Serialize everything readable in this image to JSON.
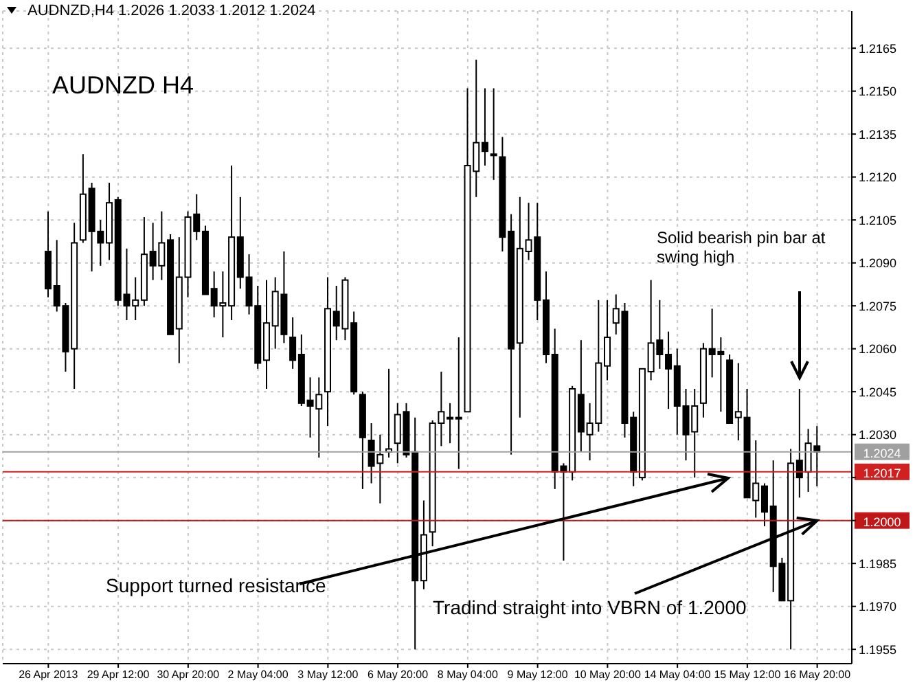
{
  "chart_data": {
    "type": "candlestick",
    "title": "AUDNZD H4",
    "annotations": [
      "AUDNZD,H4  1.2026 1.2033 1.2012 1.2024",
      "Support turned resistance",
      {
        "text": "Tradind straight into VBRN of 1.2000",
        "x": "16 May 20:00",
        "y": 1.2
      },
      "Solid bearish pin bar at swing high"
    ],
    "categories": [
      "26 Apr 2013",
      null,
      null,
      null,
      null,
      null,
      null,
      null,
      "29 Apr 12:00",
      null,
      null,
      null,
      null,
      null,
      null,
      null,
      "30 Apr 20:00",
      null,
      null,
      null,
      null,
      null,
      null,
      null,
      "2 May 04:00",
      null,
      null,
      null,
      null,
      null,
      null,
      null,
      "3 May 12:00",
      null,
      null,
      null,
      null,
      null,
      null,
      null,
      "6 May 20:00",
      null,
      null,
      null,
      null,
      null,
      null,
      null,
      "8 May 04:00",
      null,
      null,
      null,
      null,
      null,
      null,
      null,
      "9 May 12:00",
      null,
      null,
      null,
      null,
      null,
      null,
      null,
      "10 May 20:00",
      null,
      null,
      null,
      null,
      null,
      null,
      null,
      "14 May 04:00",
      null,
      null,
      null,
      null,
      null,
      null,
      null,
      "15 May 12:00",
      null,
      null,
      null,
      null,
      null,
      null,
      null,
      "16 May 20:00"
    ],
    "color": "#000000",
    "ohlc": [
      [
        1.2094,
        1.2108,
        1.2078,
        1.2081
      ],
      [
        1.2082,
        1.2098,
        1.2073,
        1.2075
      ],
      [
        1.2075,
        1.2076,
        1.2052,
        1.2059
      ],
      [
        1.206,
        1.2104,
        1.2046,
        1.2097
      ],
      [
        1.2098,
        1.2128,
        1.2097,
        1.2114
      ],
      [
        1.2116,
        1.2118,
        1.2087,
        1.2101
      ],
      [
        1.2101,
        1.2105,
        1.2089,
        1.2097
      ],
      [
        1.2097,
        1.2118,
        1.2091,
        1.2111
      ],
      [
        1.2112,
        1.2113,
        1.2075,
        1.2077
      ],
      [
        1.2079,
        1.2095,
        1.207,
        1.2075
      ],
      [
        1.2075,
        1.2085,
        1.207,
        1.2077
      ],
      [
        1.2077,
        1.2106,
        1.2075,
        1.2093
      ],
      [
        1.2094,
        1.2104,
        1.2084,
        1.2089
      ],
      [
        1.2089,
        1.2108,
        1.2084,
        1.2097
      ],
      [
        1.2098,
        1.21,
        1.2065,
        1.2065
      ],
      [
        1.2067,
        1.2099,
        1.2055,
        1.2085
      ],
      [
        1.2085,
        1.2108,
        1.2078,
        1.2106
      ],
      [
        1.2107,
        1.2114,
        1.2098,
        1.2101
      ],
      [
        1.2101,
        1.2103,
        1.2079,
        1.2079
      ],
      [
        1.2081,
        1.2087,
        1.2071,
        1.2075
      ],
      [
        1.2075,
        1.2087,
        1.2064,
        1.2076
      ],
      [
        1.2075,
        1.2124,
        1.207,
        1.2099
      ],
      [
        1.2099,
        1.2113,
        1.2081,
        1.2085
      ],
      [
        1.2085,
        1.2093,
        1.2072,
        1.2075
      ],
      [
        1.2075,
        1.2082,
        1.2053,
        1.2055
      ],
      [
        1.2056,
        1.2084,
        1.2046,
        1.2069
      ],
      [
        1.2068,
        1.2085,
        1.206,
        1.208
      ],
      [
        1.2079,
        1.2094,
        1.2062,
        1.2065
      ],
      [
        1.2064,
        1.2071,
        1.2053,
        1.2056
      ],
      [
        1.2058,
        1.2065,
        1.204,
        1.2041
      ],
      [
        1.2042,
        1.205,
        1.2029,
        1.204
      ],
      [
        1.2039,
        1.205,
        1.2022,
        1.2044
      ],
      [
        1.2045,
        1.2085,
        1.2033,
        1.2074
      ],
      [
        1.2073,
        1.2082,
        1.2063,
        1.2068
      ],
      [
        1.2067,
        1.2085,
        1.2063,
        1.2084
      ],
      [
        1.2069,
        1.2073,
        1.2044,
        1.2045
      ],
      [
        1.2044,
        1.2045,
        1.2011,
        1.2029
      ],
      [
        1.2028,
        1.2034,
        1.2013,
        1.2019
      ],
      [
        1.202,
        1.203,
        1.2006,
        1.2023
      ],
      [
        1.2024,
        1.2053,
        1.2022,
        1.2025
      ],
      [
        1.2027,
        1.2041,
        1.202,
        1.2037
      ],
      [
        1.2038,
        1.2041,
        1.2022,
        1.2023
      ],
      [
        1.2024,
        1.2036,
        1.1955,
        1.1979
      ],
      [
        1.1979,
        1.2007,
        1.1976,
        1.1995
      ],
      [
        1.1996,
        1.2035,
        1.1991,
        1.2034
      ],
      [
        1.2034,
        1.2052,
        1.2026,
        1.2038
      ],
      [
        1.2036,
        1.2041,
        1.2027,
        1.2036
      ],
      [
        1.2036,
        1.2064,
        1.2018,
        1.2036
      ],
      [
        1.2038,
        1.2151,
        1.2038,
        1.2124
      ],
      [
        1.2122,
        1.2161,
        1.2113,
        1.2132
      ],
      [
        1.2132,
        1.2151,
        1.2124,
        1.2129
      ],
      [
        1.2128,
        1.2151,
        1.2119,
        1.2128
      ],
      [
        1.2127,
        1.2134,
        1.2094,
        1.2099
      ],
      [
        1.2101,
        1.2107,
        1.2023,
        1.206
      ],
      [
        1.2062,
        1.2113,
        1.2036,
        1.2095
      ],
      [
        1.2094,
        1.2111,
        1.2091,
        1.2098
      ],
      [
        1.2099,
        1.2111,
        1.207,
        1.2077
      ],
      [
        1.2077,
        1.2087,
        1.2055,
        1.2058
      ],
      [
        1.2058,
        1.2067,
        1.2011,
        1.2017
      ],
      [
        1.2019,
        1.202,
        1.1986,
        1.2017
      ],
      [
        1.2017,
        1.2047,
        1.2014,
        1.2046
      ],
      [
        1.2044,
        1.2063,
        1.2024,
        1.2031
      ],
      [
        1.203,
        1.2041,
        1.2021,
        1.2034
      ],
      [
        1.2034,
        1.2077,
        1.2031,
        1.2055
      ],
      [
        1.2054,
        1.2077,
        1.2049,
        1.2064
      ],
      [
        1.2069,
        1.2079,
        1.2065,
        1.2074
      ],
      [
        1.2073,
        1.2076,
        1.2029,
        1.2034
      ],
      [
        1.2036,
        1.2038,
        1.2012,
        1.2017
      ],
      [
        1.2015,
        1.2053,
        1.2014,
        1.2053
      ],
      [
        1.2052,
        1.2084,
        1.2049,
        1.2062
      ],
      [
        1.2063,
        1.2077,
        1.2053,
        1.2058
      ],
      [
        1.2058,
        1.2066,
        1.2039,
        1.2053
      ],
      [
        1.2054,
        1.206,
        1.203,
        1.204
      ],
      [
        1.204,
        1.2046,
        1.2021,
        1.203
      ],
      [
        1.2031,
        1.2046,
        1.2015,
        1.204
      ],
      [
        1.2041,
        1.2062,
        1.2036,
        1.206
      ],
      [
        1.206,
        1.2074,
        1.205,
        1.2058
      ],
      [
        1.2059,
        1.2064,
        1.2038,
        1.2058
      ],
      [
        1.2056,
        1.2058,
        1.2034,
        1.2034
      ],
      [
        1.2036,
        1.2055,
        1.2028,
        1.2038
      ],
      [
        1.2036,
        1.2046,
        1.2008,
        1.2008
      ],
      [
        1.2007,
        1.2028,
        1.2001,
        1.2013
      ],
      [
        1.2012,
        1.2013,
        1.1998,
        1.2003
      ],
      [
        1.2005,
        1.2021,
        1.1975,
        1.1984
      ],
      [
        1.1985,
        1.1987,
        1.1972,
        1.1972
      ],
      [
        1.1972,
        1.2025,
        1.1955,
        1.202
      ],
      [
        1.2021,
        1.2046,
        1.2008,
        1.2015
      ],
      [
        1.2017,
        1.2032,
        1.201,
        1.2027
      ],
      [
        1.2026,
        1.2033,
        1.2012,
        1.2024
      ]
    ],
    "ylim": [
      1.195,
      1.2178
    ],
    "yticks": [
      1.1955,
      {
        "value": 1.197,
        "label": "1.1970"
      },
      1.1985,
      {
        "value": 1.2,
        "label": null
      },
      {
        "value": 1.2015,
        "label": null
      },
      {
        "value": 1.203,
        "label": "1.2030"
      },
      1.2045,
      {
        "value": 1.206,
        "label": "1.2060"
      },
      1.2075,
      {
        "value": 1.209,
        "label": "1.2090"
      },
      1.2105,
      {
        "value": 1.212,
        "label": "1.2120"
      },
      1.2135,
      {
        "value": 1.215,
        "label": "1.2150"
      },
      1.2165
    ],
    "ref_lines": [
      {
        "axis": "y",
        "value": 1.2024,
        "label": "1.2024",
        "color": "#a0a0a0"
      },
      {
        "axis": "y",
        "value": 1.2017,
        "label": "1.2017",
        "color": "#d02020"
      },
      {
        "axis": "y",
        "value": 1.2,
        "label": "1.2000",
        "color": "#c01818"
      }
    ],
    "grid": true
  }
}
